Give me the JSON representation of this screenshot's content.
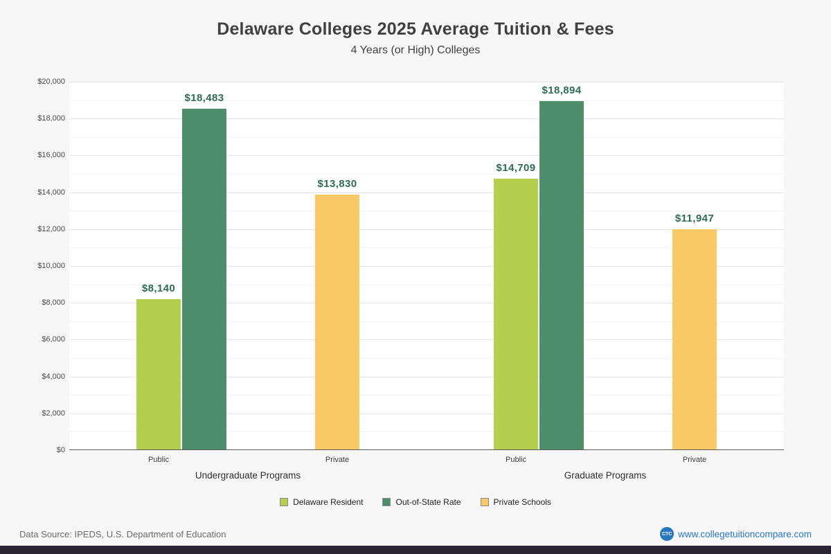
{
  "chart_data": {
    "type": "bar",
    "title": "Delaware Colleges 2025 Average Tuition & Fees",
    "subtitle": "4 Years (or High)  Colleges",
    "ylim": [
      0,
      20000
    ],
    "grid": true,
    "legend_position": "bottom",
    "yticks": [
      {
        "value": 0,
        "label": "$0"
      },
      {
        "value": 2000,
        "label": "$2,000"
      },
      {
        "value": 4000,
        "label": "$4,000"
      },
      {
        "value": 6000,
        "label": "$6,000"
      },
      {
        "value": 8000,
        "label": "$8,000"
      },
      {
        "value": 10000,
        "label": "$10,000"
      },
      {
        "value": 12000,
        "label": "$12,000"
      },
      {
        "value": 14000,
        "label": "$14,000"
      },
      {
        "value": 16000,
        "label": "$16,000"
      },
      {
        "value": 18000,
        "label": "$18,000"
      },
      {
        "value": 20000,
        "label": "$20,000"
      }
    ],
    "groups": [
      {
        "label": "Undergraduate Programs",
        "categories": [
          {
            "label": "Public",
            "bars": [
              {
                "series": "Delaware Resident",
                "value": 8140,
                "display": "$8,140"
              },
              {
                "series": "Out-of-State Rate",
                "value": 18483,
                "display": "$18,483"
              }
            ]
          },
          {
            "label": "Private",
            "bars": [
              {
                "series": "Private Schools",
                "value": 13830,
                "display": "$13,830"
              }
            ]
          }
        ]
      },
      {
        "label": "Graduate Programs",
        "categories": [
          {
            "label": "Public",
            "bars": [
              {
                "series": "Delaware Resident",
                "value": 14709,
                "display": "$14,709"
              },
              {
                "series": "Out-of-State Rate",
                "value": 18894,
                "display": "$18,894"
              }
            ]
          },
          {
            "label": "Private",
            "bars": [
              {
                "series": "Private Schools",
                "value": 11947,
                "display": "$11,947"
              }
            ]
          }
        ]
      }
    ],
    "legend": [
      {
        "name": "Delaware Resident",
        "color": "#b2d04e"
      },
      {
        "name": "Out-of-State Rate",
        "color": "#4f8e6d"
      },
      {
        "name": "Private Schools",
        "color": "#f7c967"
      }
    ]
  },
  "footer": {
    "source": "Data Source: IPEDS, U.S. Department of Education",
    "logo": "CTC",
    "site": "www.collegetuitioncompare.com"
  },
  "colors": {
    "value_label": "#2f6a57",
    "accent_link": "#2878be",
    "bottom_bar": "#2c2536",
    "plot_background": "#ffffff",
    "page_background": "#f7f7f8"
  }
}
